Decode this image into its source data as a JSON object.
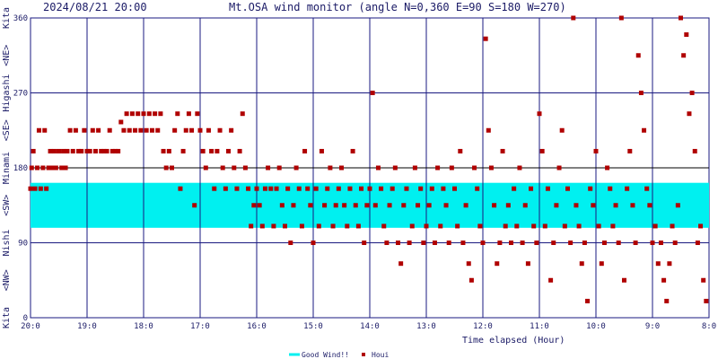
{
  "header": {
    "timestamp": "2024/08/21 20:00",
    "title": "Mt.OSA wind monitor (angle N=0,360 E=90 S=180 W=270)"
  },
  "colors": {
    "plot_bg": "#ffffff",
    "grid": "#1a1a80",
    "good_wind_band": "#00f0f0",
    "points": "#b00000",
    "text": "#1a1a66"
  },
  "chart_data": {
    "type": "scatter",
    "xlabel": "Time elapsed (Hour)",
    "ylim": [
      0,
      360
    ],
    "y_ticks": [
      "0",
      "90",
      "180",
      "270",
      "360"
    ],
    "x_tick_labels": [
      "20:0",
      "19:0",
      "18:0",
      "17:0",
      "16:0",
      "15:0",
      "14:0",
      "13:0",
      "12:0",
      "11:0",
      "10:0",
      "9:0",
      "8:0"
    ],
    "x_range_hours_elapsed": [
      0,
      12
    ],
    "direction_labels": [
      "Kita",
      "<NE>",
      "Higashi",
      "<SE>",
      "Minami",
      "<SW>",
      "Nishi",
      "<NW>",
      "Kita"
    ],
    "good_wind_range": [
      108,
      162
    ],
    "legend": [
      {
        "name": "Good Wind!!"
      },
      {
        "name": "Houi"
      }
    ],
    "series": [
      {
        "name": "Houi",
        "points": [
          [
            0.0,
            155
          ],
          [
            0.02,
            180
          ],
          [
            0.05,
            200
          ],
          [
            0.08,
            155
          ],
          [
            0.12,
            180
          ],
          [
            0.15,
            225
          ],
          [
            0.18,
            155
          ],
          [
            0.22,
            180
          ],
          [
            0.25,
            225
          ],
          [
            0.28,
            155
          ],
          [
            0.32,
            180
          ],
          [
            0.35,
            200
          ],
          [
            0.38,
            180
          ],
          [
            0.42,
            200
          ],
          [
            0.45,
            180
          ],
          [
            0.5,
            200
          ],
          [
            0.55,
            180
          ],
          [
            0.58,
            200
          ],
          [
            0.62,
            180
          ],
          [
            0.65,
            200
          ],
          [
            0.7,
            225
          ],
          [
            0.75,
            200
          ],
          [
            0.8,
            225
          ],
          [
            0.85,
            200
          ],
          [
            0.9,
            200
          ],
          [
            0.95,
            225
          ],
          [
            1.0,
            200
          ],
          [
            1.05,
            200
          ],
          [
            1.1,
            225
          ],
          [
            1.15,
            200
          ],
          [
            1.2,
            225
          ],
          [
            1.25,
            200
          ],
          [
            1.3,
            200
          ],
          [
            1.35,
            200
          ],
          [
            1.4,
            225
          ],
          [
            1.45,
            200
          ],
          [
            1.5,
            200
          ],
          [
            1.55,
            200
          ],
          [
            1.6,
            235
          ],
          [
            1.65,
            225
          ],
          [
            1.7,
            245
          ],
          [
            1.75,
            225
          ],
          [
            1.8,
            245
          ],
          [
            1.85,
            225
          ],
          [
            1.9,
            245
          ],
          [
            1.95,
            225
          ],
          [
            2.0,
            245
          ],
          [
            2.05,
            225
          ],
          [
            2.1,
            245
          ],
          [
            2.15,
            225
          ],
          [
            2.2,
            245
          ],
          [
            2.25,
            225
          ],
          [
            2.3,
            245
          ],
          [
            2.35,
            200
          ],
          [
            2.4,
            180
          ],
          [
            2.45,
            200
          ],
          [
            2.5,
            180
          ],
          [
            2.55,
            225
          ],
          [
            2.6,
            245
          ],
          [
            2.65,
            155
          ],
          [
            2.7,
            200
          ],
          [
            2.75,
            225
          ],
          [
            2.8,
            245
          ],
          [
            2.85,
            225
          ],
          [
            2.9,
            135
          ],
          [
            2.95,
            245
          ],
          [
            3.0,
            225
          ],
          [
            3.05,
            200
          ],
          [
            3.1,
            180
          ],
          [
            3.15,
            225
          ],
          [
            3.2,
            200
          ],
          [
            3.25,
            155
          ],
          [
            3.3,
            200
          ],
          [
            3.35,
            225
          ],
          [
            3.4,
            180
          ],
          [
            3.45,
            155
          ],
          [
            3.5,
            200
          ],
          [
            3.55,
            225
          ],
          [
            3.6,
            180
          ],
          [
            3.65,
            155
          ],
          [
            3.7,
            200
          ],
          [
            3.75,
            245
          ],
          [
            3.8,
            180
          ],
          [
            3.85,
            155
          ],
          [
            3.9,
            110
          ],
          [
            3.95,
            135
          ],
          [
            4.0,
            155
          ],
          [
            4.05,
            135
          ],
          [
            4.1,
            110
          ],
          [
            4.15,
            155
          ],
          [
            4.2,
            180
          ],
          [
            4.25,
            155
          ],
          [
            4.3,
            110
          ],
          [
            4.35,
            155
          ],
          [
            4.4,
            180
          ],
          [
            4.45,
            135
          ],
          [
            4.5,
            110
          ],
          [
            4.55,
            155
          ],
          [
            4.6,
            90
          ],
          [
            4.65,
            135
          ],
          [
            4.7,
            180
          ],
          [
            4.75,
            155
          ],
          [
            4.8,
            110
          ],
          [
            4.85,
            200
          ],
          [
            4.9,
            155
          ],
          [
            4.95,
            135
          ],
          [
            5.0,
            90
          ],
          [
            5.05,
            155
          ],
          [
            5.1,
            110
          ],
          [
            5.15,
            200
          ],
          [
            5.2,
            135
          ],
          [
            5.25,
            155
          ],
          [
            5.3,
            180
          ],
          [
            5.35,
            110
          ],
          [
            5.4,
            135
          ],
          [
            5.45,
            155
          ],
          [
            5.5,
            180
          ],
          [
            5.55,
            135
          ],
          [
            5.6,
            110
          ],
          [
            5.65,
            155
          ],
          [
            5.7,
            200
          ],
          [
            5.75,
            135
          ],
          [
            5.8,
            110
          ],
          [
            5.85,
            155
          ],
          [
            5.9,
            90
          ],
          [
            5.95,
            135
          ],
          [
            6.0,
            155
          ],
          [
            6.05,
            270
          ],
          [
            6.1,
            135
          ],
          [
            6.15,
            180
          ],
          [
            6.2,
            155
          ],
          [
            6.25,
            110
          ],
          [
            6.3,
            90
          ],
          [
            6.35,
            135
          ],
          [
            6.4,
            155
          ],
          [
            6.45,
            180
          ],
          [
            6.5,
            90
          ],
          [
            6.55,
            65
          ],
          [
            6.6,
            135
          ],
          [
            6.65,
            155
          ],
          [
            6.7,
            90
          ],
          [
            6.75,
            110
          ],
          [
            6.8,
            180
          ],
          [
            6.85,
            135
          ],
          [
            6.9,
            155
          ],
          [
            6.95,
            90
          ],
          [
            7.0,
            110
          ],
          [
            7.05,
            135
          ],
          [
            7.1,
            155
          ],
          [
            7.15,
            90
          ],
          [
            7.2,
            180
          ],
          [
            7.25,
            110
          ],
          [
            7.3,
            155
          ],
          [
            7.35,
            135
          ],
          [
            7.4,
            90
          ],
          [
            7.45,
            180
          ],
          [
            7.5,
            155
          ],
          [
            7.55,
            110
          ],
          [
            7.6,
            200
          ],
          [
            7.65,
            90
          ],
          [
            7.7,
            135
          ],
          [
            7.75,
            65
          ],
          [
            7.8,
            45
          ],
          [
            7.85,
            180
          ],
          [
            7.9,
            155
          ],
          [
            7.95,
            110
          ],
          [
            8.0,
            90
          ],
          [
            8.05,
            335
          ],
          [
            8.1,
            225
          ],
          [
            8.15,
            180
          ],
          [
            8.2,
            135
          ],
          [
            8.25,
            65
          ],
          [
            8.3,
            90
          ],
          [
            8.35,
            200
          ],
          [
            8.4,
            110
          ],
          [
            8.45,
            135
          ],
          [
            8.5,
            90
          ],
          [
            8.55,
            155
          ],
          [
            8.6,
            110
          ],
          [
            8.65,
            180
          ],
          [
            8.7,
            90
          ],
          [
            8.75,
            135
          ],
          [
            8.8,
            65
          ],
          [
            8.85,
            155
          ],
          [
            8.9,
            110
          ],
          [
            8.95,
            90
          ],
          [
            9.0,
            245
          ],
          [
            9.05,
            200
          ],
          [
            9.1,
            110
          ],
          [
            9.15,
            155
          ],
          [
            9.2,
            45
          ],
          [
            9.25,
            90
          ],
          [
            9.3,
            135
          ],
          [
            9.35,
            180
          ],
          [
            9.4,
            225
          ],
          [
            9.45,
            110
          ],
          [
            9.5,
            155
          ],
          [
            9.55,
            90
          ],
          [
            9.6,
            360
          ],
          [
            9.65,
            135
          ],
          [
            9.7,
            110
          ],
          [
            9.75,
            65
          ],
          [
            9.8,
            90
          ],
          [
            9.85,
            20
          ],
          [
            9.9,
            155
          ],
          [
            9.95,
            135
          ],
          [
            10.0,
            200
          ],
          [
            10.05,
            110
          ],
          [
            10.1,
            65
          ],
          [
            10.15,
            90
          ],
          [
            10.2,
            180
          ],
          [
            10.25,
            155
          ],
          [
            10.3,
            110
          ],
          [
            10.35,
            135
          ],
          [
            10.4,
            90
          ],
          [
            10.45,
            360
          ],
          [
            10.5,
            45
          ],
          [
            10.55,
            155
          ],
          [
            10.6,
            200
          ],
          [
            10.65,
            135
          ],
          [
            10.7,
            90
          ],
          [
            10.75,
            315
          ],
          [
            10.8,
            270
          ],
          [
            10.85,
            225
          ],
          [
            10.9,
            155
          ],
          [
            10.95,
            135
          ],
          [
            11.0,
            90
          ],
          [
            11.05,
            110
          ],
          [
            11.1,
            65
          ],
          [
            11.15,
            90
          ],
          [
            11.2,
            45
          ],
          [
            11.25,
            20
          ],
          [
            11.3,
            65
          ],
          [
            11.35,
            110
          ],
          [
            11.4,
            90
          ],
          [
            11.45,
            135
          ],
          [
            11.5,
            360
          ],
          [
            11.55,
            315
          ],
          [
            11.6,
            340
          ],
          [
            11.65,
            245
          ],
          [
            11.7,
            270
          ],
          [
            11.75,
            200
          ],
          [
            11.8,
            90
          ],
          [
            11.85,
            110
          ],
          [
            11.9,
            45
          ],
          [
            11.95,
            20
          ]
        ]
      }
    ]
  }
}
